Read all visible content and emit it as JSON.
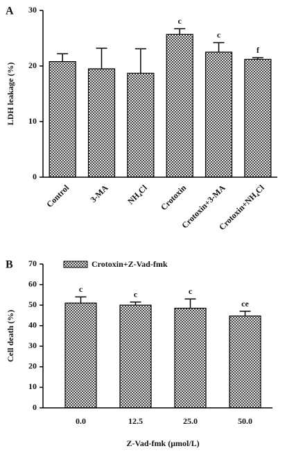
{
  "chart_data": [
    {
      "type": "bar",
      "panel": "A",
      "ylabel": "LDH leakage (%)",
      "categories": [
        "Control",
        "3-MA",
        "NH₄Cl",
        "Crotoxin",
        "Crotoxin+3-MA",
        "Crotoxin+NH₄Cl"
      ],
      "series": [
        {
          "color": "#444444",
          "values": [
            20.8,
            19.5,
            18.7,
            25.7,
            22.5,
            21.2
          ],
          "errors": [
            1.4,
            3.7,
            4.4,
            1.0,
            1.7,
            0.3
          ],
          "bar_labels": [
            null,
            null,
            null,
            "c",
            "c",
            "f"
          ]
        }
      ],
      "ylim": [
        0,
        30
      ],
      "yticks": [
        0,
        10,
        20,
        30
      ]
    },
    {
      "type": "bar",
      "panel": "B",
      "ylabel": "Cell death (%)",
      "xlabel": "Z-Vad-fmk (μmol/L)",
      "categories": [
        "0.0",
        "12.5",
        "25.0",
        "50.0"
      ],
      "series": [
        {
          "name": "Crotoxin+Z-Vad-fmk",
          "color": "#444444",
          "values": [
            51,
            50,
            48.5,
            44.7
          ],
          "errors": [
            3,
            1.5,
            4.5,
            2.3
          ],
          "bar_labels": [
            "c",
            "c",
            "c",
            "ce"
          ]
        }
      ],
      "ylim": [
        0,
        70
      ],
      "yticks": [
        0,
        10,
        20,
        30,
        40,
        50,
        60,
        70
      ]
    }
  ]
}
